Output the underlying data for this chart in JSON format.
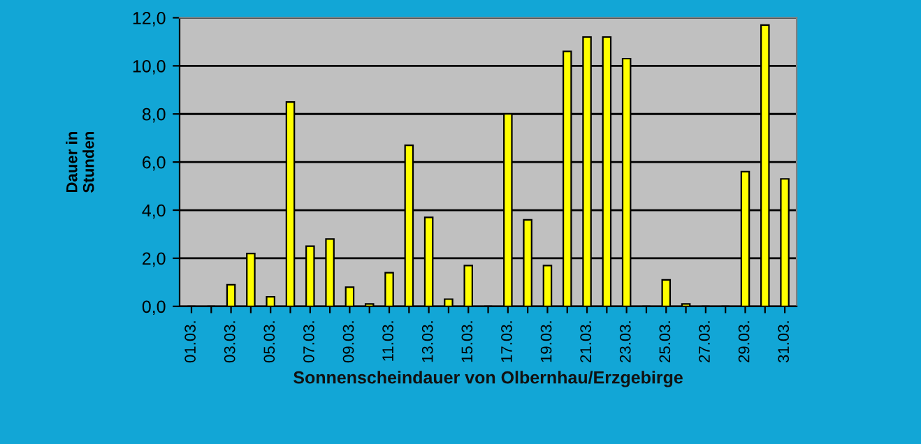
{
  "chart_data": {
    "type": "bar",
    "xlabel": "Sonnenscheindauer von Olbernhau/Erzgebirge",
    "ylabel": "Dauer in\nStunden",
    "categories": [
      "01.03.",
      null,
      "03.03.",
      null,
      "05.03.",
      null,
      "07.03.",
      null,
      "09.03.",
      null,
      "11.03.",
      null,
      "13.03.",
      null,
      "15.03.",
      null,
      "17.03.",
      null,
      "19.03.",
      null,
      "21.03.",
      null,
      "23.03.",
      null,
      "25.03.",
      null,
      "27.03.",
      null,
      "29.03.",
      null,
      "31.03."
    ],
    "values": [
      0,
      0,
      0.9,
      2.2,
      0.4,
      8.5,
      2.5,
      2.8,
      0.8,
      0.1,
      1.4,
      6.7,
      3.7,
      0.3,
      1.7,
      0,
      8.0,
      3.6,
      1.7,
      10.6,
      11.2,
      11.2,
      10.3,
      0,
      1.1,
      0.1,
      0,
      0,
      5.6,
      11.7,
      5.3
    ],
    "color": "#ffff00",
    "ylim": [
      0,
      12
    ],
    "yticks": [
      {
        "value": 0,
        "label": "0,0"
      },
      {
        "value": 2,
        "label": "2,0"
      },
      {
        "value": 4,
        "label": "4,0"
      },
      {
        "value": 6,
        "label": "6,0"
      },
      {
        "value": 8,
        "label": "8,0"
      },
      {
        "value": 10,
        "label": "10,0"
      },
      {
        "value": 12,
        "label": "12,0"
      }
    ],
    "grid": "y",
    "legend": false
  }
}
